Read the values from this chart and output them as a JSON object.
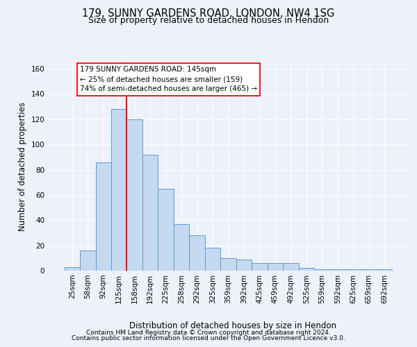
{
  "title1": "179, SUNNY GARDENS ROAD, LONDON, NW4 1SG",
  "title2": "Size of property relative to detached houses in Hendon",
  "xlabel": "Distribution of detached houses by size in Hendon",
  "ylabel": "Number of detached properties",
  "categories": [
    "25sqm",
    "58sqm",
    "92sqm",
    "125sqm",
    "158sqm",
    "192sqm",
    "225sqm",
    "258sqm",
    "292sqm",
    "325sqm",
    "359sqm",
    "392sqm",
    "425sqm",
    "459sqm",
    "492sqm",
    "525sqm",
    "559sqm",
    "592sqm",
    "625sqm",
    "659sqm",
    "692sqm"
  ],
  "values": [
    3,
    16,
    86,
    128,
    120,
    92,
    65,
    37,
    28,
    18,
    10,
    9,
    6,
    6,
    6,
    2,
    1,
    1,
    1,
    1,
    1
  ],
  "bar_color": "#c5d9f0",
  "bar_edge_color": "#5b9bd5",
  "vline_index": 3,
  "vline_color": "red",
  "annotation_text": "179 SUNNY GARDENS ROAD: 145sqm\n← 25% of detached houses are smaller (159)\n74% of semi-detached houses are larger (465) →",
  "ylim": [
    0,
    165
  ],
  "yticks": [
    0,
    20,
    40,
    60,
    80,
    100,
    120,
    140,
    160
  ],
  "footnote1": "Contains HM Land Registry data © Crown copyright and database right 2024.",
  "footnote2": "Contains public sector information licensed under the Open Government Licence v3.0.",
  "background_color": "#edf2fa",
  "grid_color": "#ffffff",
  "title1_fontsize": 10.5,
  "title2_fontsize": 9,
  "axis_label_fontsize": 8.5,
  "tick_fontsize": 7.5,
  "annot_fontsize": 7.5,
  "footnote_fontsize": 6.5
}
